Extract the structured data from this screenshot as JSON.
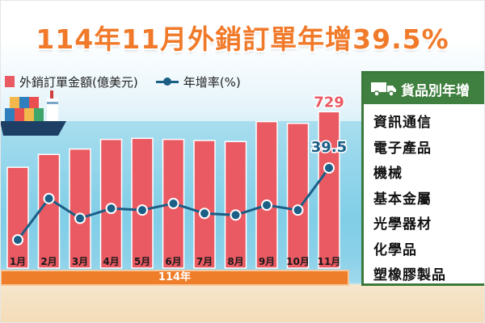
{
  "title": "114年11月外銷訂單年增39.5%",
  "legend": {
    "bar": "外銷訂單金額(億美元)",
    "line": "年增率(%)"
  },
  "panel": {
    "title": "貨品別年增",
    "items": [
      "資訊通信",
      "電子產品",
      "機械",
      "基本金屬",
      "光學器材",
      "化學品",
      "塑橡膠製品"
    ]
  },
  "colors": {
    "bar": "#ea5a63",
    "line": "#1b5e86",
    "title": "#f07a2a",
    "panel": "#3f7f3f",
    "year_bar": "#ef7e2a"
  },
  "chart_data": {
    "type": "bar",
    "year_label": "114年",
    "categories": [
      "1月",
      "2月",
      "3月",
      "4月",
      "5月",
      "6月",
      "7月",
      "8月",
      "9月",
      "10月",
      "11月"
    ],
    "series": [
      {
        "name": "外銷訂單金額(億美元)",
        "type": "bar",
        "values": [
          470,
          530,
          555,
          600,
          605,
          600,
          595,
          590,
          683,
          675,
          729
        ],
        "data_labels": {
          "10": "729"
        }
      },
      {
        "name": "年增率(%)",
        "type": "line",
        "values": [
          -4,
          21,
          9,
          15,
          14,
          18,
          12,
          11,
          17,
          14,
          39.5
        ],
        "data_labels": {
          "10": "39.5"
        }
      }
    ]
  },
  "icons": [
    "truck-icon",
    "ship-icon"
  ]
}
